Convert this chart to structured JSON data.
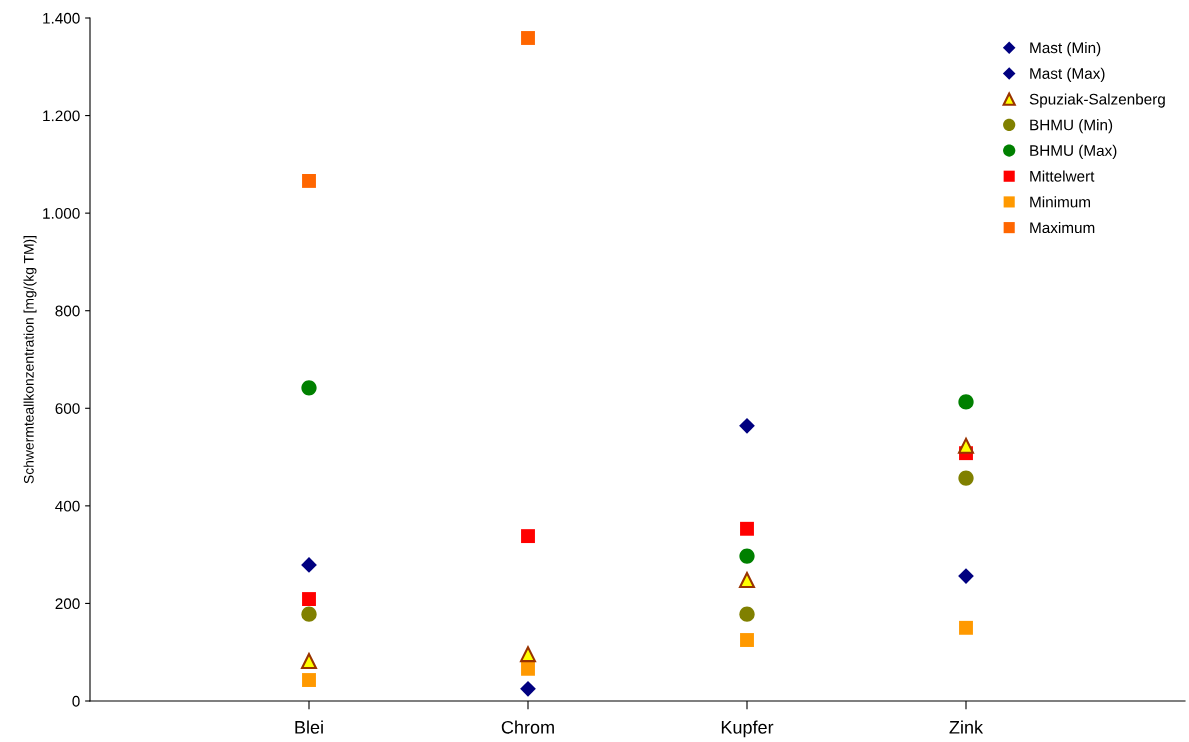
{
  "chart_data": {
    "type": "scatter",
    "ylabel": "Schwermteallkonzentration [mg/(kg TM)]",
    "categories": [
      "Blei",
      "Chrom",
      "Kupfer",
      "Zink"
    ],
    "ylim": [
      0,
      1400
    ],
    "yticks": [
      0,
      200,
      400,
      600,
      800,
      {
        "value": 1000,
        "label": "1.000"
      },
      {
        "value": 1200,
        "label": "1.200"
      },
      {
        "value": 1400,
        "label": "1.400"
      }
    ],
    "grid": false,
    "legend": "top right",
    "series": [
      {
        "name": "Mast (Min)",
        "color": "#000080",
        "marker": "diamond",
        "values": [
          null,
          25,
          null,
          256
        ]
      },
      {
        "name": "Mast (Max)",
        "color": "#000080",
        "marker": "diamond",
        "values": [
          279,
          null,
          564,
          null
        ]
      },
      {
        "name": "Spuziak-Salzenberg",
        "color": "#ffff00",
        "marker": "triangle",
        "values": [
          82,
          96,
          248,
          523
        ]
      },
      {
        "name": "BHMU (Min)",
        "color": "#808000",
        "marker": "circle",
        "values": [
          178,
          null,
          178,
          457
        ]
      },
      {
        "name": "BHMU (Max)",
        "color": "#008000",
        "marker": "circle",
        "values": [
          642,
          null,
          297,
          613
        ]
      },
      {
        "name": "Mittelwert",
        "color": "#ff0000",
        "marker": "square",
        "values": [
          209,
          338,
          353,
          508
        ]
      },
      {
        "name": "Minimum",
        "color": "#ff9900",
        "marker": "square",
        "values": [
          43,
          66,
          125,
          150
        ]
      },
      {
        "name": "Maximum",
        "color": "#ff6600",
        "marker": "square",
        "values": [
          1066,
          1359,
          null,
          null
        ]
      }
    ]
  }
}
